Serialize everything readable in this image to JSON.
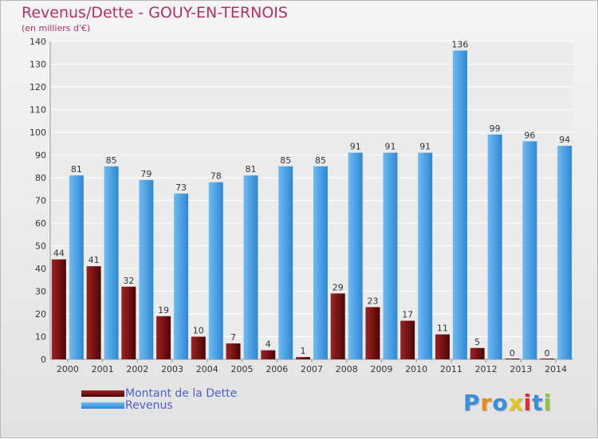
{
  "header": {
    "title": "Revenus/Dette - GOUY-EN-TERNOIS",
    "subtitle": "(en milliers d'€)"
  },
  "legend": {
    "items": [
      {
        "label": "Montant de la Dette",
        "color": "#6b0e0e"
      },
      {
        "label": "Revenus",
        "color": "#4aa3e8"
      }
    ]
  },
  "logo": {
    "text": "Proxiti",
    "colors": [
      "#3a8fd8",
      "#e88a1a",
      "#3a8fd8",
      "#e6c21a",
      "#e22a2a",
      "#3a8fd8",
      "#8cc63f"
    ]
  },
  "chart_data": {
    "type": "bar",
    "categories": [
      "2000",
      "2001",
      "2002",
      "2003",
      "2004",
      "2005",
      "2006",
      "2007",
      "2008",
      "2009",
      "2010",
      "2011",
      "2012",
      "2013",
      "2014"
    ],
    "series": [
      {
        "name": "Montant de la Dette",
        "color": "#6b0e0e",
        "values": [
          44,
          41,
          32,
          19,
          10,
          7,
          4,
          1,
          29,
          23,
          17,
          11,
          5,
          0,
          0
        ]
      },
      {
        "name": "Revenus",
        "color": "#4aa3e8",
        "values": [
          81,
          85,
          79,
          73,
          78,
          81,
          85,
          85,
          91,
          91,
          91,
          136,
          99,
          96,
          94
        ]
      }
    ],
    "yticks": [
      0,
      10,
      20,
      30,
      40,
      50,
      60,
      70,
      80,
      90,
      100,
      110,
      120,
      130,
      140
    ],
    "ylim": [
      0,
      140
    ],
    "grid": true,
    "legend_position": "bottom-left"
  }
}
